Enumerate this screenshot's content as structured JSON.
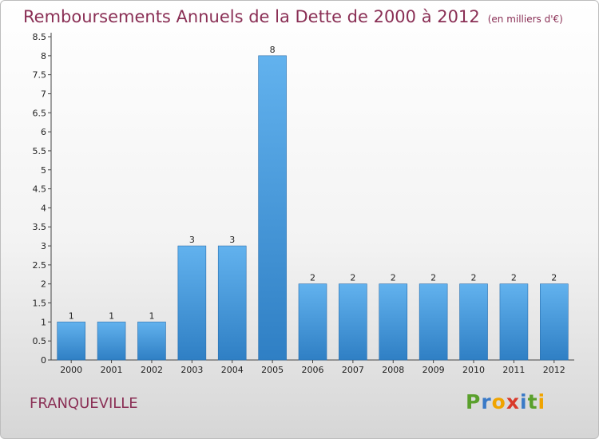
{
  "chart_data": {
    "type": "bar",
    "title": "Remboursements Annuels de la Dette de 2000 à 2012",
    "unit": "(en milliers d'€)",
    "categories": [
      "2000",
      "2001",
      "2002",
      "2003",
      "2004",
      "2005",
      "2006",
      "2007",
      "2008",
      "2009",
      "2010",
      "2011",
      "2012"
    ],
    "values": [
      1,
      1,
      1,
      3,
      3,
      8,
      2,
      2,
      2,
      2,
      2,
      2,
      2
    ],
    "ylim": [
      0,
      8.5
    ],
    "yticks": [
      "0",
      "0.5",
      "1",
      "1.5",
      "2",
      "2.5",
      "3",
      "3.5",
      "4",
      "4.5",
      "5",
      "5.5",
      "6",
      "6.5",
      "7",
      "7.5",
      "8",
      "8.5"
    ],
    "grid": false,
    "legend": "none",
    "bar_color": "#3d93d8"
  },
  "footer": {
    "city": "FRANQUEVILLE",
    "brand": [
      "P",
      "r",
      "o",
      "x",
      "i",
      "t",
      "i"
    ],
    "brand_colors": [
      "#5aa02c",
      "#3a7ac7",
      "#f0a400",
      "#d93a2b",
      "#3a7ac7",
      "#5aa02c",
      "#f0a400"
    ]
  }
}
